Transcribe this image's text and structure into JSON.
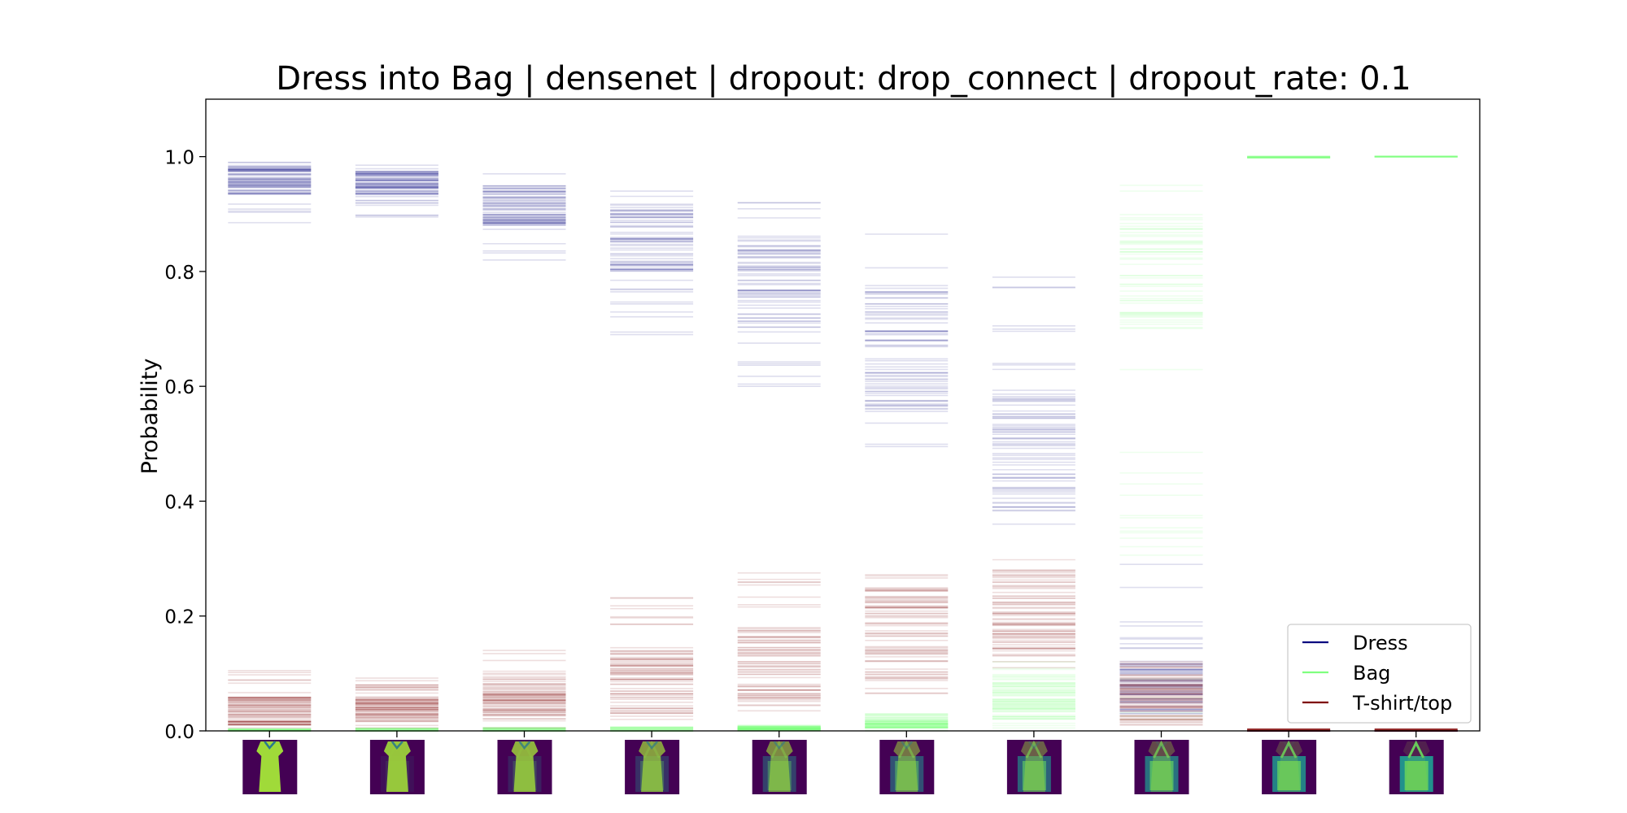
{
  "chart_data": {
    "type": "strip",
    "title": "Dress into Bag | densenet | dropout: drop_connect | dropout_rate: 0.1",
    "xlabel": "",
    "ylabel": "Probability",
    "ylim": [
      0,
      1.1
    ],
    "yticks": [
      "0.0",
      "0.2",
      "0.4",
      "0.6",
      "0.8",
      "1.0"
    ],
    "grid": false,
    "legend_position": "lower-right",
    "series": [
      {
        "name": "Dress",
        "color": "#00007f",
        "ranges": [
          [
            0.885,
            0.99
          ],
          [
            0.895,
            0.985
          ],
          [
            0.82,
            0.97
          ],
          [
            0.69,
            0.94
          ],
          [
            0.6,
            0.92
          ],
          [
            0.495,
            0.865
          ],
          [
            0.36,
            0.79
          ],
          [
            0.03,
            0.29
          ],
          [
            0.0,
            0.0
          ],
          [
            0.0,
            0.0
          ]
        ],
        "dense_bands": [
          [
            0.935,
            0.985
          ],
          [
            0.93,
            0.975
          ],
          [
            0.88,
            0.95
          ],
          [
            0.8,
            0.92
          ],
          [
            0.7,
            0.86
          ],
          [
            0.56,
            0.79
          ],
          [
            0.38,
            0.6
          ],
          [
            0.03,
            0.12
          ],
          [
            0.0,
            0.0
          ],
          [
            0.0,
            0.0
          ]
        ]
      },
      {
        "name": "Bag",
        "color": "#7fff7f",
        "ranges": [
          [
            0.0,
            0.003
          ],
          [
            0.0,
            0.004
          ],
          [
            0.0,
            0.005
          ],
          [
            0.0,
            0.006
          ],
          [
            0.0,
            0.01
          ],
          [
            0.0,
            0.03
          ],
          [
            0.005,
            0.12
          ],
          [
            0.02,
            0.95
          ],
          [
            0.998,
            1.0
          ],
          [
            1.0,
            1.0
          ]
        ],
        "dense_bands": [
          [
            0.0,
            0.002
          ],
          [
            0.0,
            0.003
          ],
          [
            0.0,
            0.003
          ],
          [
            0.0,
            0.004
          ],
          [
            0.0,
            0.008
          ],
          [
            0.005,
            0.02
          ],
          [
            0.02,
            0.09
          ],
          [
            0.7,
            0.9
          ],
          [
            0.998,
            1.0
          ],
          [
            1.0,
            1.0
          ]
        ]
      },
      {
        "name": "T-shirt/top",
        "color": "#7f0000",
        "ranges": [
          [
            0.005,
            0.105
          ],
          [
            0.005,
            0.092
          ],
          [
            0.005,
            0.14
          ],
          [
            0.02,
            0.232
          ],
          [
            0.035,
            0.275
          ],
          [
            0.065,
            0.272
          ],
          [
            0.11,
            0.298
          ],
          [
            0.01,
            0.12
          ],
          [
            0.0,
            0.003
          ],
          [
            0.0,
            0.003
          ]
        ],
        "dense_bands": [
          [
            0.01,
            0.06
          ],
          [
            0.015,
            0.06
          ],
          [
            0.02,
            0.09
          ],
          [
            0.03,
            0.14
          ],
          [
            0.05,
            0.18
          ],
          [
            0.08,
            0.25
          ],
          [
            0.13,
            0.28
          ],
          [
            0.01,
            0.1
          ],
          [
            0.0,
            0.003
          ],
          [
            0.0,
            0.003
          ]
        ]
      }
    ],
    "x_positions": 10,
    "legend": [
      {
        "name": "Dress",
        "color": "#00007f"
      },
      {
        "name": "Bag",
        "color": "#7fff7f"
      },
      {
        "name": "T-shirt/top",
        "color": "#7f0000"
      }
    ],
    "thumbnails": [
      {
        "morph": 0.0
      },
      {
        "morph": 0.11
      },
      {
        "morph": 0.22
      },
      {
        "morph": 0.33
      },
      {
        "morph": 0.44
      },
      {
        "morph": 0.56
      },
      {
        "morph": 0.67
      },
      {
        "morph": 0.78
      },
      {
        "morph": 0.89
      },
      {
        "morph": 1.0
      }
    ]
  }
}
